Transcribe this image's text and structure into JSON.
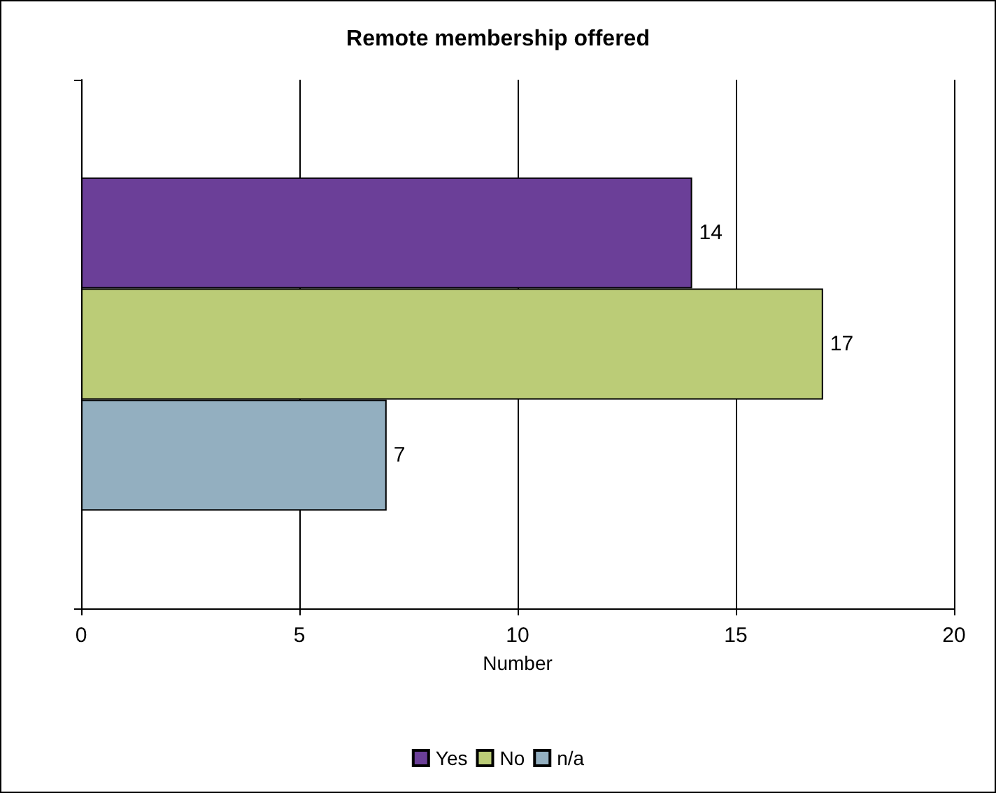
{
  "chart_data": {
    "type": "bar",
    "orientation": "horizontal",
    "title": "Remote membership offered",
    "xlabel": "Number",
    "categories": [
      null
    ],
    "series": [
      {
        "name": "Yes",
        "color": "#6b3f98",
        "values": [
          14
        ]
      },
      {
        "name": "No",
        "color": "#bbcc77",
        "values": [
          17
        ]
      },
      {
        "name": "n/a",
        "color": "#93afc0",
        "values": [
          7
        ]
      }
    ],
    "xlim": [
      0,
      20
    ],
    "xticks": [
      0,
      5,
      10,
      15,
      20
    ],
    "grid": "x",
    "legend": "bottom",
    "data_labels": true
  }
}
